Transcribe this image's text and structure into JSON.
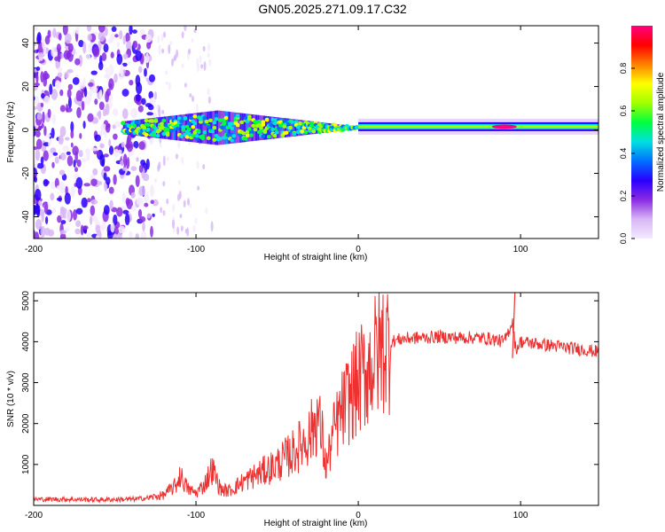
{
  "title": "GN05.2025.271.09.17.C32",
  "chart_data": [
    {
      "type": "heatmap",
      "name": "spectrogram",
      "xlabel": "Height of straight line (km)",
      "ylabel": "Frequency (Hz)",
      "xlim": [
        -200,
        148
      ],
      "ylim": [
        -50,
        48
      ],
      "xticks": [
        -200,
        -100,
        0,
        100
      ],
      "yticks": [
        -40,
        -20,
        0,
        20,
        40
      ],
      "colorbar": {
        "label": "Normalized spectral amplitude",
        "range": [
          0,
          1
        ],
        "ticks": [
          "0.0",
          "0.2",
          "0.4",
          "0.6",
          "0.8"
        ],
        "tick_values": [
          0,
          0.2,
          0.4,
          0.6,
          0.8
        ],
        "colors": [
          "#f4eafe",
          "#d8b6f6",
          "#8a2be2",
          "#2a00ff",
          "#0070ff",
          "#00e0e0",
          "#00ff40",
          "#a0ff00",
          "#ffff00",
          "#ff8000",
          "#ff0000",
          "#ff0080"
        ]
      },
      "features": [
        {
          "label": "scattered noise",
          "x_range": [
            -200,
            -125
          ],
          "freq_range": [
            -50,
            48
          ],
          "amplitude": 0.12
        },
        {
          "label": "broadening band",
          "x_range": [
            -145,
            0
          ],
          "freq_center": 1,
          "freq_halfwidth": [
            3,
            8,
            0.5
          ],
          "amplitude": 0.45
        },
        {
          "label": "narrow line",
          "x_range": [
            0,
            148
          ],
          "freq_center": 1.5,
          "freq_halfwidth": 0.5,
          "amplitude": 0.65
        },
        {
          "label": "peak",
          "x": 90,
          "freq_center": 1.5,
          "amplitude": 0.92
        }
      ]
    },
    {
      "type": "line",
      "name": "snr",
      "xlabel": "Height of straight line (km)",
      "ylabel": "SNR (10 * v/v)",
      "xlim": [
        -200,
        148
      ],
      "ylim": [
        0,
        5200
      ],
      "xticks": [
        -200,
        -100,
        0,
        100
      ],
      "yticks": [
        1000,
        2000,
        3000,
        4000,
        5000
      ],
      "color": "#ee3030",
      "series": [
        {
          "name": "SNR",
          "x": [
            -200,
            -180,
            -160,
            -140,
            -130,
            -120,
            -112,
            -110,
            -105,
            -100,
            -95,
            -90,
            -85,
            -80,
            -70,
            -60,
            -50,
            -40,
            -30,
            -25,
            -22,
            -20,
            -15,
            -10,
            -5,
            0,
            5,
            10,
            15,
            20,
            25,
            30,
            40,
            50,
            60,
            70,
            80,
            90,
            95,
            97,
            100,
            110,
            120,
            130,
            140,
            148
          ],
          "values": [
            150,
            150,
            140,
            150,
            180,
            250,
            500,
            750,
            400,
            300,
            500,
            900,
            400,
            350,
            600,
            800,
            1000,
            1300,
            1700,
            2200,
            1600,
            900,
            1800,
            2300,
            2700,
            3000,
            3300,
            3600,
            3900,
            4000,
            4050,
            4080,
            4100,
            4120,
            4100,
            4100,
            4080,
            4000,
            4500,
            3800,
            4000,
            3950,
            3900,
            3850,
            3800,
            3750
          ]
        }
      ]
    }
  ]
}
